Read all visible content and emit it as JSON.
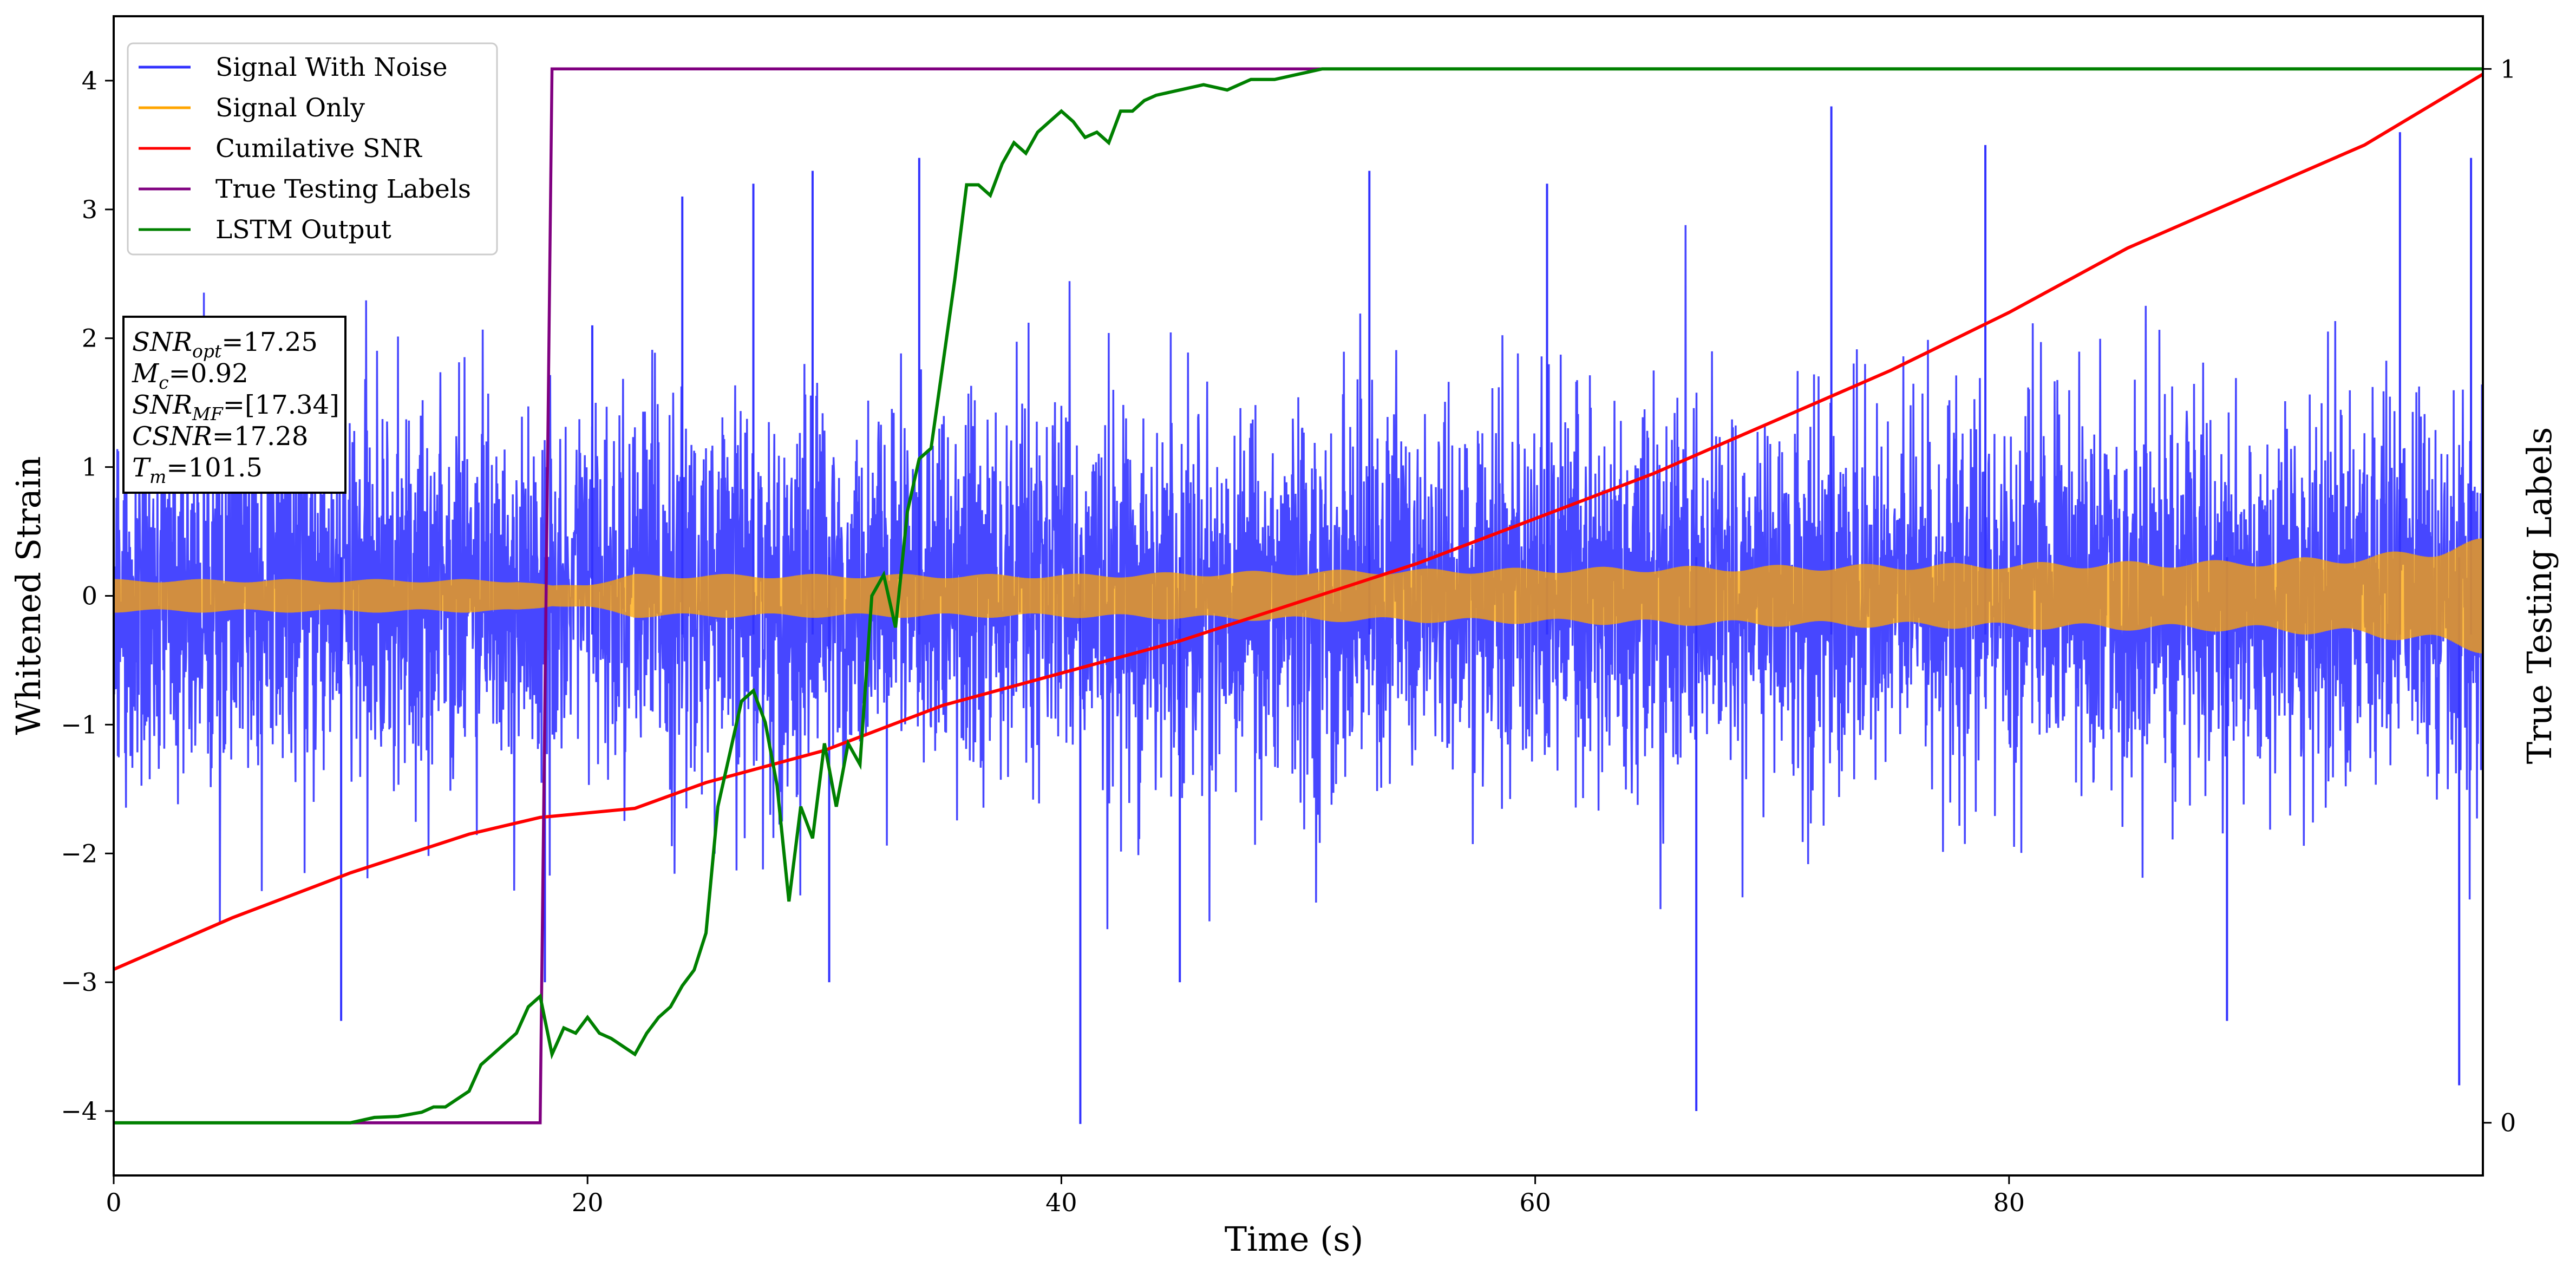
{
  "chart_data": {
    "type": "line",
    "xlabel": "Time (s)",
    "ylabel": "Whitened Strain",
    "y2label": "True Testing Labels",
    "xlim": [
      0,
      100
    ],
    "ylim": [
      -4.5,
      4.5
    ],
    "y2lim": [
      -0.05,
      1.05
    ],
    "x_ticks": [
      0,
      20,
      40,
      60,
      80
    ],
    "y_ticks": [
      -4,
      -3,
      -2,
      -1,
      0,
      1,
      2,
      3,
      4
    ],
    "y2_ticks": [
      0,
      1
    ],
    "grid": false,
    "legend_position": "top-left",
    "annotation": {
      "lines": [
        {
          "var": "SNR",
          "sub": "opt",
          "value": "=17.25"
        },
        {
          "var": "M",
          "sub": "c",
          "value": "=0.92"
        },
        {
          "var": "SNR",
          "sub": "MF",
          "value": "=[17.34]"
        },
        {
          "var": "CSNR",
          "sub": "",
          "value": "=17.28"
        },
        {
          "var": "T",
          "sub": "m",
          "value": "=101.5"
        }
      ]
    },
    "series": [
      {
        "name": "Signal With Noise",
        "color": "#3333ff",
        "axis": "left",
        "kind": "noise",
        "base_amplitude": 0.5,
        "typical_peak": 1.8,
        "extreme_points": [
          [
            9.6,
            -3.3
          ],
          [
            18.2,
            -3.0
          ],
          [
            20.2,
            2.1
          ],
          [
            24.0,
            3.1
          ],
          [
            27.0,
            3.2
          ],
          [
            29.5,
            3.3
          ],
          [
            30.2,
            -3.0
          ],
          [
            34.0,
            3.4
          ],
          [
            40.8,
            -4.1
          ],
          [
            45.0,
            -3.0
          ],
          [
            53.0,
            3.3
          ],
          [
            60.5,
            3.2
          ],
          [
            66.8,
            -4.0
          ],
          [
            72.5,
            3.8
          ],
          [
            79.0,
            3.5
          ],
          [
            89.2,
            -3.3
          ],
          [
            96.5,
            3.6
          ],
          [
            99.0,
            -3.8
          ],
          [
            99.5,
            3.4
          ]
        ]
      },
      {
        "name": "Signal Only",
        "color": "#ffa500",
        "axis": "left",
        "kind": "envelope",
        "envelope": {
          "x": [
            0,
            17,
            18.5,
            20,
            22,
            40,
            50,
            60,
            70,
            80,
            90,
            95,
            98,
            100
          ],
          "amp": [
            0.13,
            0.13,
            0.08,
            0.1,
            0.17,
            0.17,
            0.2,
            0.22,
            0.24,
            0.26,
            0.28,
            0.32,
            0.38,
            0.45
          ]
        }
      },
      {
        "name": "Cumilative SNR",
        "color": "#ff0000",
        "axis": "left",
        "x": [
          0,
          5,
          10,
          15,
          18,
          22,
          25,
          30,
          35,
          40,
          45,
          50,
          55,
          60,
          65,
          70,
          75,
          80,
          85,
          90,
          95,
          100
        ],
        "y": [
          -2.9,
          -2.5,
          -2.15,
          -1.85,
          -1.72,
          -1.65,
          -1.45,
          -1.2,
          -0.85,
          -0.6,
          -0.35,
          -0.05,
          0.25,
          0.6,
          0.95,
          1.35,
          1.75,
          2.2,
          2.7,
          3.1,
          3.5,
          4.05
        ]
      },
      {
        "name": "True Testing Labels",
        "color": "#800080",
        "axis": "right",
        "x": [
          0,
          18.0,
          18.5,
          100
        ],
        "y": [
          0,
          0,
          1,
          1
        ]
      },
      {
        "name": "LSTM Output",
        "color": "#008000",
        "axis": "right",
        "x": [
          0,
          10,
          11,
          12,
          13,
          13.5,
          14,
          15,
          15.5,
          16,
          17,
          17.5,
          18,
          18.5,
          19,
          19.5,
          20,
          20.5,
          21,
          22,
          22.5,
          23,
          23.5,
          24,
          24.5,
          25,
          25.5,
          26,
          26.5,
          27,
          27.5,
          28,
          28.5,
          29,
          29.5,
          30,
          30.5,
          31,
          31.5,
          32,
          32.5,
          33,
          33.5,
          34,
          34.5,
          35,
          35.5,
          36,
          36.5,
          37,
          37.5,
          38,
          38.5,
          39,
          39.5,
          40,
          40.5,
          41,
          41.5,
          42,
          42.5,
          43,
          43.5,
          44,
          45,
          46,
          47,
          48,
          49,
          50,
          51,
          52,
          53,
          54,
          55,
          56,
          57,
          58,
          60,
          62,
          65,
          68,
          100
        ],
        "y": [
          0,
          0,
          0.005,
          0.006,
          0.01,
          0.015,
          0.015,
          0.03,
          0.055,
          0.065,
          0.085,
          0.11,
          0.12,
          0.065,
          0.09,
          0.085,
          0.1,
          0.085,
          0.08,
          0.065,
          0.085,
          0.1,
          0.11,
          0.13,
          0.145,
          0.18,
          0.3,
          0.35,
          0.4,
          0.41,
          0.38,
          0.32,
          0.21,
          0.3,
          0.27,
          0.36,
          0.3,
          0.36,
          0.34,
          0.5,
          0.52,
          0.47,
          0.58,
          0.63,
          0.64,
          0.72,
          0.8,
          0.89,
          0.89,
          0.88,
          0.91,
          0.93,
          0.92,
          0.94,
          0.95,
          0.96,
          0.95,
          0.935,
          0.94,
          0.93,
          0.96,
          0.96,
          0.97,
          0.975,
          0.98,
          0.985,
          0.98,
          0.99,
          0.99,
          0.995,
          1.0,
          1.0,
          1.0,
          1.0,
          1.0,
          1.0,
          1.0,
          1.0,
          1.0,
          1.0,
          1.0,
          1.0,
          1.0
        ]
      }
    ]
  }
}
